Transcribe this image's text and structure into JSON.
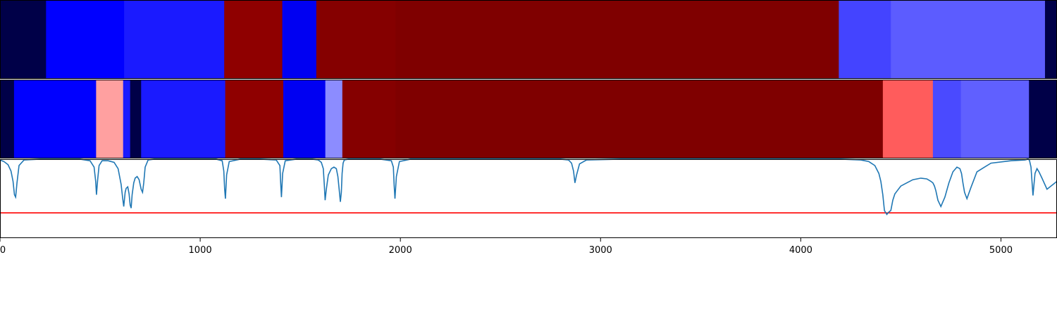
{
  "chart_data": {
    "type": "heatmap",
    "title": "",
    "xlabel": "",
    "ylabel": "",
    "xlim": [
      0,
      5280
    ],
    "x_ticks": [
      0,
      1000,
      2000,
      3000,
      4000,
      5000
    ],
    "x_tick_labels": [
      "0",
      "1000",
      "2000",
      "3000",
      "4000",
      "5000"
    ],
    "grid": false,
    "legend": "none",
    "segment_rows": [
      {
        "segments": [
          {
            "start": 0,
            "end": 230,
            "color": "#000048"
          },
          {
            "start": 230,
            "end": 620,
            "color": "#0000ff"
          },
          {
            "start": 620,
            "end": 1120,
            "color": "#1a1aff"
          },
          {
            "start": 1120,
            "end": 1410,
            "color": "#8f0000"
          },
          {
            "start": 1410,
            "end": 1580,
            "color": "#0000f2"
          },
          {
            "start": 1580,
            "end": 1975,
            "color": "#850000"
          },
          {
            "start": 1975,
            "end": 4190,
            "color": "#7f0000"
          },
          {
            "start": 4190,
            "end": 4450,
            "color": "#4444ff"
          },
          {
            "start": 4450,
            "end": 5220,
            "color": "#5c5cff"
          },
          {
            "start": 5220,
            "end": 5280,
            "color": "#000048"
          }
        ]
      },
      {
        "segments": [
          {
            "start": 0,
            "end": 70,
            "color": "#000048"
          },
          {
            "start": 70,
            "end": 480,
            "color": "#0000ff"
          },
          {
            "start": 480,
            "end": 615,
            "color": "#ffa0a0"
          },
          {
            "start": 615,
            "end": 650,
            "color": "#1a1aff"
          },
          {
            "start": 650,
            "end": 705,
            "color": "#000048"
          },
          {
            "start": 705,
            "end": 1125,
            "color": "#1a1aff"
          },
          {
            "start": 1125,
            "end": 1415,
            "color": "#8f0000"
          },
          {
            "start": 1415,
            "end": 1625,
            "color": "#0000f2"
          },
          {
            "start": 1625,
            "end": 1710,
            "color": "#8c8cff"
          },
          {
            "start": 1710,
            "end": 1975,
            "color": "#850000"
          },
          {
            "start": 1975,
            "end": 4410,
            "color": "#7f0000"
          },
          {
            "start": 4410,
            "end": 4660,
            "color": "#ff5c5c"
          },
          {
            "start": 4660,
            "end": 4800,
            "color": "#4a4aff"
          },
          {
            "start": 4800,
            "end": 5140,
            "color": "#6060ff"
          },
          {
            "start": 5140,
            "end": 5280,
            "color": "#000048"
          }
        ]
      }
    ],
    "line_panel": {
      "ylim": [
        0,
        1
      ],
      "threshold": 0.32,
      "threshold_color": "#ff0000",
      "line_color": "#1f77b4",
      "x": [
        0,
        20,
        40,
        55,
        65,
        72,
        78,
        85,
        95,
        120,
        200,
        300,
        400,
        450,
        470,
        478,
        482,
        488,
        495,
        510,
        540,
        570,
        590,
        605,
        612,
        618,
        625,
        630,
        638,
        645,
        650,
        655,
        660,
        668,
        675,
        685,
        695,
        705,
        712,
        718,
        725,
        740,
        770,
        820,
        900,
        1000,
        1080,
        1110,
        1118,
        1122,
        1126,
        1132,
        1145,
        1200,
        1300,
        1380,
        1398,
        1402,
        1406,
        1412,
        1425,
        1480,
        1560,
        1590,
        1605,
        1615,
        1620,
        1624,
        1630,
        1640,
        1655,
        1668,
        1680,
        1688,
        1695,
        1700,
        1705,
        1709,
        1714,
        1720,
        1740,
        1800,
        1900,
        1955,
        1965,
        1969,
        1973,
        1980,
        1995,
        2050,
        2300,
        2600,
        2800,
        2840,
        2855,
        2865,
        2872,
        2880,
        2895,
        2930,
        3100,
        3500,
        3900,
        4200,
        4300,
        4340,
        4370,
        4390,
        4400,
        4410,
        4418,
        4425,
        4430,
        4440,
        4450,
        4460,
        4470,
        4485,
        4500,
        4530,
        4560,
        4600,
        4630,
        4650,
        4660,
        4668,
        4675,
        4685,
        4700,
        4720,
        4740,
        4760,
        4780,
        4795,
        4803,
        4810,
        4818,
        4830,
        4850,
        4880,
        4950,
        5050,
        5120,
        5135,
        5142,
        5150,
        5160,
        5170,
        5180,
        5190,
        5205,
        5230,
        5280
      ],
      "y": [
        0.99,
        0.97,
        0.93,
        0.85,
        0.72,
        0.55,
        0.52,
        0.7,
        0.92,
        0.99,
        1.0,
        1.0,
        1.0,
        0.98,
        0.9,
        0.72,
        0.55,
        0.74,
        0.92,
        0.98,
        0.98,
        0.96,
        0.88,
        0.68,
        0.52,
        0.4,
        0.58,
        0.63,
        0.65,
        0.56,
        0.42,
        0.38,
        0.55,
        0.7,
        0.76,
        0.78,
        0.74,
        0.62,
        0.58,
        0.7,
        0.9,
        0.99,
        1.0,
        1.0,
        1.0,
        1.0,
        1.0,
        0.98,
        0.85,
        0.62,
        0.5,
        0.8,
        0.97,
        1.0,
        1.0,
        0.99,
        0.92,
        0.7,
        0.52,
        0.82,
        0.98,
        1.0,
        1.0,
        0.99,
        0.96,
        0.88,
        0.68,
        0.48,
        0.62,
        0.8,
        0.88,
        0.9,
        0.88,
        0.78,
        0.6,
        0.46,
        0.58,
        0.82,
        0.95,
        0.99,
        1.0,
        1.0,
        1.0,
        0.98,
        0.9,
        0.66,
        0.5,
        0.78,
        0.97,
        1.0,
        1.0,
        1.0,
        1.0,
        0.99,
        0.95,
        0.85,
        0.7,
        0.8,
        0.94,
        0.99,
        1.0,
        1.0,
        1.0,
        1.0,
        0.99,
        0.97,
        0.92,
        0.82,
        0.72,
        0.55,
        0.35,
        0.32,
        0.3,
        0.33,
        0.35,
        0.48,
        0.56,
        0.61,
        0.66,
        0.7,
        0.74,
        0.76,
        0.75,
        0.72,
        0.7,
        0.66,
        0.6,
        0.48,
        0.4,
        0.52,
        0.7,
        0.84,
        0.9,
        0.88,
        0.82,
        0.7,
        0.58,
        0.5,
        0.64,
        0.84,
        0.95,
        0.98,
        0.99,
        1.0,
        0.99,
        0.9,
        0.54,
        0.82,
        0.88,
        0.84,
        0.76,
        0.62,
        0.72,
        0.88,
        0.97,
        0.99,
        0.99
      ]
    }
  }
}
